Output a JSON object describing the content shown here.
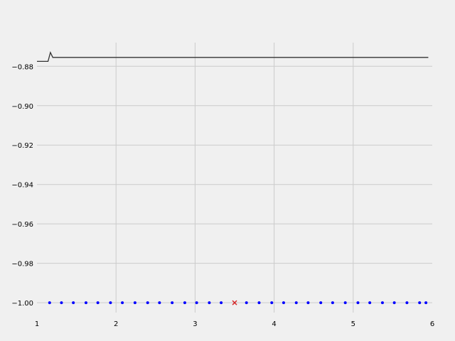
{
  "chart_data": {
    "type": "line",
    "title": "",
    "xlabel": "",
    "ylabel": "",
    "xlim": [
      1,
      6
    ],
    "ylim": [
      -1.005,
      -0.868
    ],
    "x_ticks": [
      1,
      2,
      3,
      4,
      5,
      6
    ],
    "x_tick_labels": [
      "1",
      "2",
      "3",
      "4",
      "5",
      "6"
    ],
    "y_ticks": [
      -1.0,
      -0.98,
      -0.96,
      -0.94,
      -0.92,
      -0.9,
      -0.88
    ],
    "y_tick_labels": [
      "−1.00",
      "−0.98",
      "−0.96",
      "−0.94",
      "−0.92",
      "−0.90",
      "−0.88"
    ],
    "grid": true,
    "colors": {
      "background": "#f0f0f0",
      "grid": "#cbcbcb",
      "line": "#333333",
      "points": "#0000ff",
      "marker": "#d62728"
    },
    "series": [
      {
        "type": "line",
        "x": [
          1.0,
          1.14,
          1.17,
          1.2,
          1.22,
          5.95
        ],
        "y": [
          -0.8775,
          -0.8775,
          -0.873,
          -0.8755,
          -0.8755,
          -0.8755
        ]
      },
      {
        "type": "scatter",
        "x": [
          1.16,
          1.31,
          1.46,
          1.62,
          1.77,
          1.93,
          2.08,
          2.24,
          2.4,
          2.55,
          2.71,
          2.87,
          3.02,
          3.18,
          3.33,
          3.65,
          3.81,
          3.97,
          4.12,
          4.28,
          4.43,
          4.59,
          4.74,
          4.9,
          5.06,
          5.21,
          5.37,
          5.52,
          5.68,
          5.84,
          5.92
        ],
        "y": [
          -1.0,
          -1.0,
          -1.0,
          -1.0,
          -1.0,
          -1.0,
          -1.0,
          -1.0,
          -1.0,
          -1.0,
          -1.0,
          -1.0,
          -1.0,
          -1.0,
          -1.0,
          -1.0,
          -1.0,
          -1.0,
          -1.0,
          -1.0,
          -1.0,
          -1.0,
          -1.0,
          -1.0,
          -1.0,
          -1.0,
          -1.0,
          -1.0,
          -1.0,
          -1.0,
          -1.0
        ]
      },
      {
        "type": "marker",
        "shape": "x",
        "x": [
          3.5
        ],
        "y": [
          -1.0
        ]
      }
    ]
  }
}
